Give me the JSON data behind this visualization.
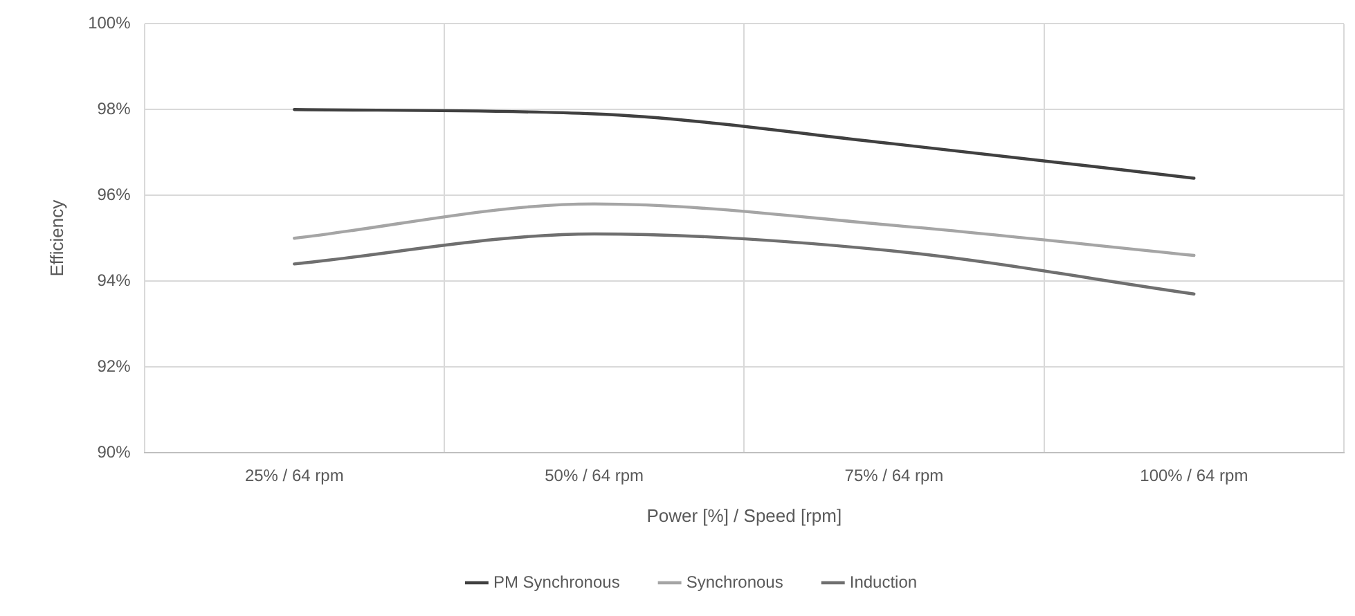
{
  "chart_data": {
    "type": "line",
    "xlabel": "Power [%] / Speed [rpm]",
    "ylabel": "Efficiency",
    "categories": [
      "25% / 64 rpm",
      "50% / 64 rpm",
      "75% / 64 rpm",
      "100% / 64 rpm"
    ],
    "series": [
      {
        "name": "PM Synchronous",
        "color": "#404040",
        "values": [
          98.0,
          97.9,
          97.2,
          96.4
        ]
      },
      {
        "name": "Synchronous",
        "color": "#a5a5a5",
        "values": [
          95.0,
          95.8,
          95.3,
          94.6
        ]
      },
      {
        "name": "Induction",
        "color": "#6f6f6f",
        "values": [
          94.4,
          95.1,
          94.7,
          93.7
        ]
      }
    ],
    "ylim": [
      90,
      100
    ],
    "yticks": [
      {
        "value": 90,
        "label": "90%"
      },
      {
        "value": 92,
        "label": "92%"
      },
      {
        "value": 94,
        "label": "94%"
      },
      {
        "value": 96,
        "label": "96%"
      },
      {
        "value": 98,
        "label": "98%"
      },
      {
        "value": 100,
        "label": "100%"
      }
    ],
    "grid": true,
    "legend": "bottom",
    "marker": "none",
    "line_style": "solid"
  }
}
